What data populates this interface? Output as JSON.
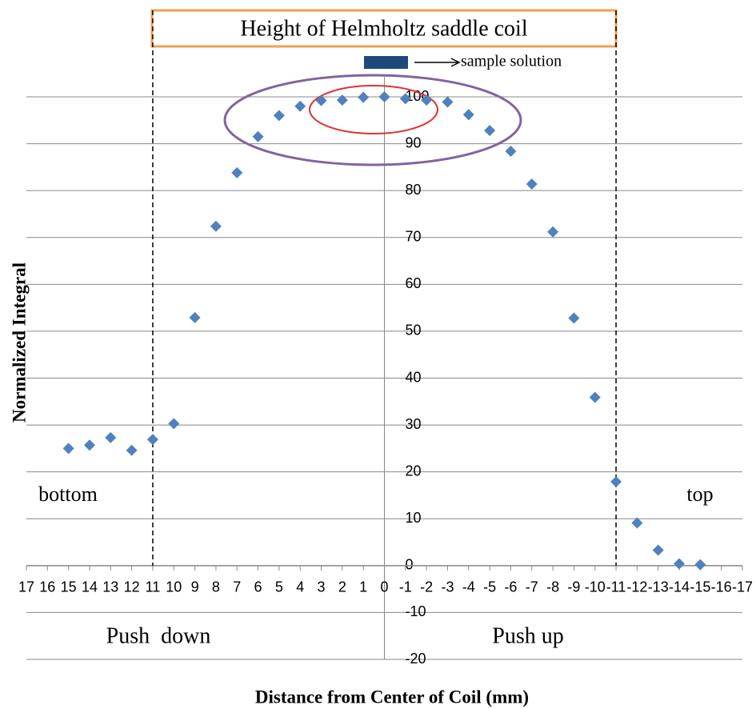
{
  "chart_data": {
    "type": "scatter",
    "title": "Height of Helmholtz saddle coil",
    "xlabel": "Distance from Center of Coil (mm)",
    "ylabel": "Normalized Integral",
    "series": [
      {
        "name": "sample solution",
        "color": "#4f81bd",
        "legend_color": "#1f497d",
        "x": [
          15,
          14,
          13,
          12,
          11,
          10,
          9,
          8,
          7,
          6,
          5,
          4,
          3,
          2,
          1,
          0,
          -1,
          -2,
          -3,
          -4,
          -5,
          -6,
          -7,
          -8,
          -9,
          -10,
          -11,
          -12,
          -13,
          -14,
          -15
        ],
        "values": [
          25,
          25.7,
          27.3,
          24.6,
          26.9,
          30.3,
          52.9,
          72.4,
          83.8,
          91.5,
          96,
          98,
          99.2,
          99.3,
          99.9,
          100,
          99.6,
          99.3,
          98.9,
          96.2,
          92.8,
          88.4,
          81.4,
          71.2,
          52.8,
          35.9,
          17.9,
          9.1,
          3.3,
          0.4,
          0.2
        ]
      }
    ],
    "xlim": [
      17,
      -17
    ],
    "xticks": [
      17,
      16,
      15,
      14,
      13,
      12,
      11,
      10,
      9,
      8,
      7,
      6,
      5,
      4,
      3,
      2,
      1,
      0,
      -1,
      -2,
      -3,
      -4,
      -5,
      -6,
      -7,
      -8,
      -9,
      -10,
      -11,
      -12,
      -13,
      -14,
      -15,
      -16,
      -17
    ],
    "ylim": [
      -20,
      100
    ],
    "yticks": [
      -20,
      -10,
      0,
      10,
      20,
      30,
      40,
      50,
      60,
      70,
      80,
      90,
      100
    ],
    "grid": true,
    "reference_lines": [
      11,
      -11
    ],
    "annotations": [
      "bottom",
      "top",
      "Push  down",
      "Push up"
    ]
  }
}
